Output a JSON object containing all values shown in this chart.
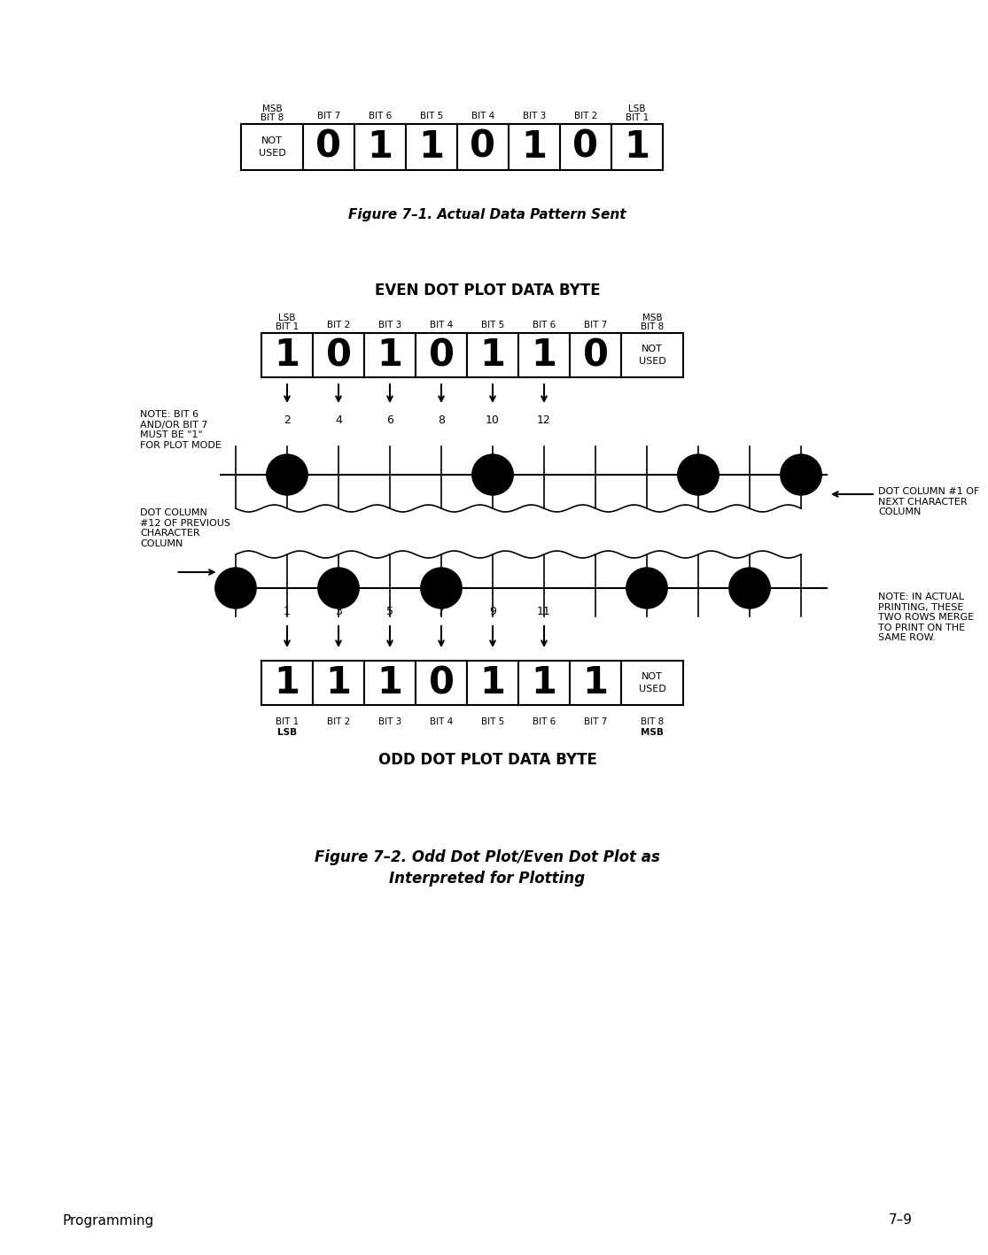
{
  "page_bg": "#ffffff",
  "fig1_title": "Figure 7–1. Actual Data Pattern Sent",
  "fig1_bits_top": [
    "MSB\nBIT 8",
    "BIT 7",
    "BIT 6",
    "BIT 5",
    "BIT 4",
    "BIT 3",
    "BIT 2",
    "LSB\nBIT 1"
  ],
  "fig1_values": [
    "NOT\nUSED",
    "0",
    "1",
    "1",
    "0",
    "1",
    "0",
    "1"
  ],
  "even_title": "EVEN DOT PLOT DATA BYTE",
  "even_bits_top": [
    "LSB\nBIT 1",
    "BIT 2",
    "BIT 3",
    "BIT 4",
    "BIT 5",
    "BIT 6",
    "BIT 7",
    "MSB\nBIT 8"
  ],
  "even_values": [
    "1",
    "0",
    "1",
    "0",
    "1",
    "1",
    "0",
    "NOT\nUSED"
  ],
  "even_col_labels": [
    "2",
    "4",
    "6",
    "8",
    "10",
    "12"
  ],
  "note_even": "NOTE: BIT 6\nAND/OR BIT 7\nMUST BE \"1\"\nFOR PLOT MODE",
  "note_dot_col_right": "DOT COLUMN #1 OF\nNEXT CHARACTER\nCOLUMN",
  "note_dot_col_left": "DOT COLUMN\n#12 OF PREVIOUS\nCHARACTER\nCOLUMN",
  "note_merge": "NOTE: IN ACTUAL\nPRINTING, THESE\nTWO ROWS MERGE\nTO PRINT ON THE\nSAME ROW.",
  "odd_title": "ODD DOT PLOT DATA BYTE",
  "odd_bits_bottom": [
    "BIT 1\nLSB",
    "BIT 2",
    "BIT 3",
    "BIT 4",
    "BIT 5",
    "BIT 6",
    "BIT 7",
    "BIT 8\nMSB"
  ],
  "odd_values": [
    "1",
    "1",
    "1",
    "0",
    "1",
    "1",
    "1",
    "NOT\nUSED"
  ],
  "odd_col_labels": [
    "1",
    "3",
    "5",
    "7",
    "9",
    "11"
  ],
  "fig2_title_line1": "Figure 7–2. Odd Dot Plot/Even Dot Plot as",
  "fig2_title_line2": "Interpreted for Plotting",
  "footer_left": "Programming",
  "footer_right": "7–9"
}
